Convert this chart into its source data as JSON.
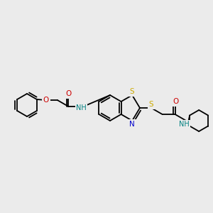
{
  "bg_color": "#ebebeb",
  "atom_colors": {
    "C": "#000000",
    "N": "#0000cc",
    "O": "#cc0000",
    "S": "#ccaa00",
    "NH": "#008080"
  },
  "bond_lw": 1.3,
  "font_size": 7.5
}
